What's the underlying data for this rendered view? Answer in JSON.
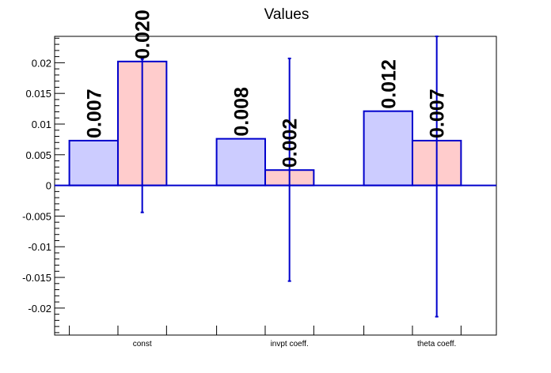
{
  "chart_data": {
    "type": "bar",
    "title": "Values",
    "xlabel": "",
    "ylabel": "",
    "categories": [
      "const",
      "invpt coeff.",
      "theta coeff."
    ],
    "series": [
      {
        "values": [
          0.0073,
          0.0076,
          0.0121
        ],
        "labels": [
          "0.007",
          "0.008",
          "0.012"
        ],
        "fill": "#ccccff",
        "stroke": "#0000cc"
      },
      {
        "values": [
          0.0202,
          0.0025,
          0.0073
        ],
        "labels": [
          "0.020",
          "0.002",
          "0.007"
        ],
        "errors_low": [
          -0.0044,
          -0.0156,
          -0.0214
        ],
        "errors_high": [
          0.0206,
          0.0207,
          0.0243
        ],
        "fill": "#ffcccc",
        "stroke": "#0000cc"
      }
    ],
    "ylim": [
      -0.0244,
      0.0243
    ],
    "yticks": [
      "-0.02",
      "-0.015",
      "-0.01",
      "-0.005",
      "0",
      "0.005",
      "0.01",
      "0.015",
      "0.02"
    ],
    "grid": false,
    "legend": "none",
    "axis_color": "#000000",
    "zero_line_color": "#0000cc"
  }
}
